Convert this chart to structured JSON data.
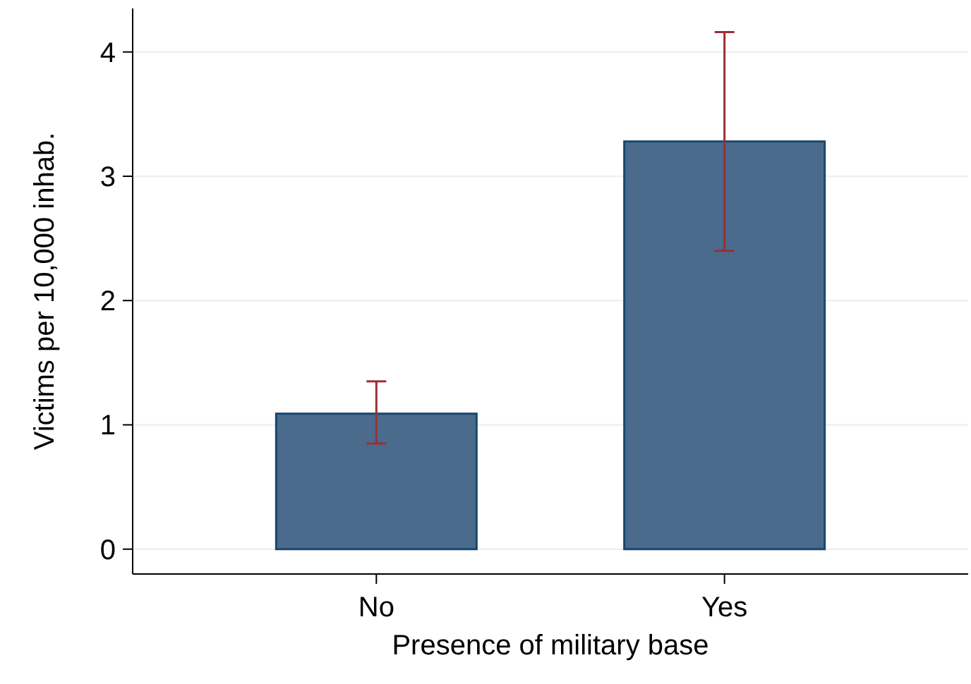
{
  "chart_data": {
    "type": "bar",
    "xlabel": "Presence of military base",
    "ylabel": "Victims per 10,000 inhab.",
    "categories": [
      "No",
      "Yes"
    ],
    "values": [
      1.09,
      3.28
    ],
    "errors": [
      [
        0.85,
        1.35
      ],
      [
        2.4,
        4.16
      ]
    ],
    "color": "#4a6b8c",
    "ylim": [
      -0.2,
      4.35
    ],
    "yticks": [
      0,
      1,
      2,
      3,
      4
    ],
    "grid": "y"
  }
}
